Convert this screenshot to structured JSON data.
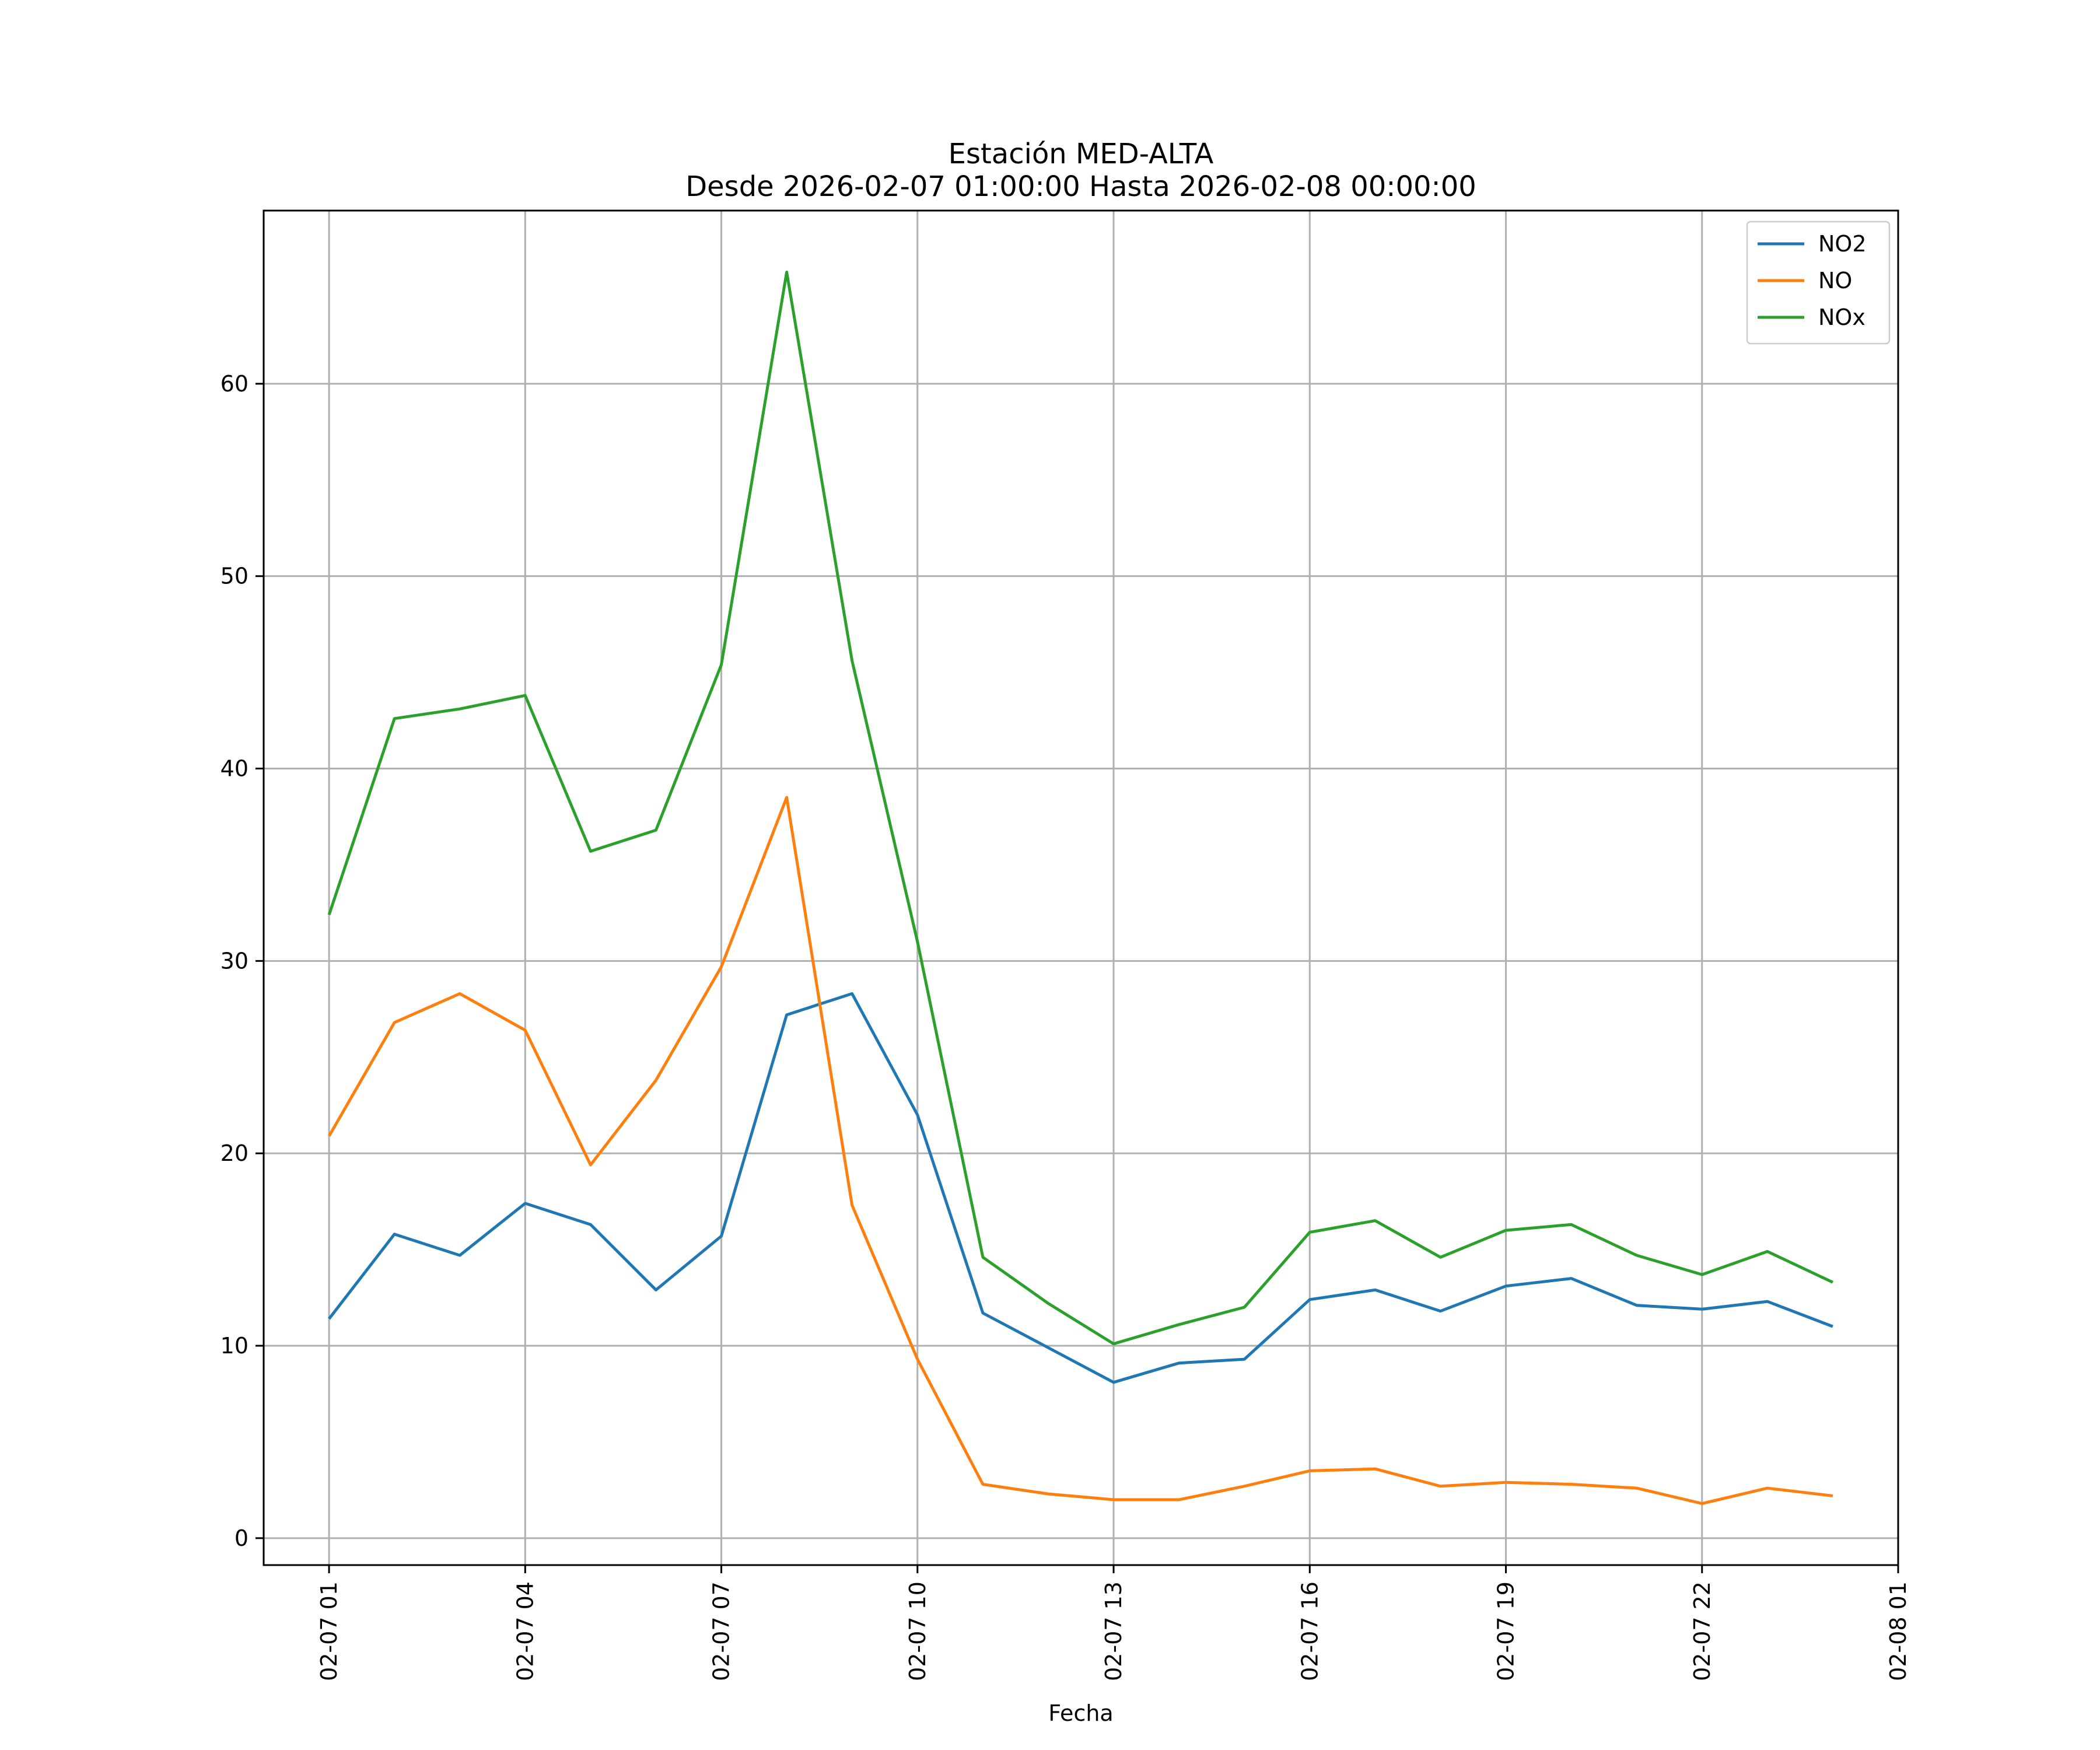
{
  "chart_data": {
    "type": "line",
    "title": [
      "Estación MED-ALTA",
      "Desde 2026-02-07 01:00:00 Hasta 2026-02-08 00:00:00"
    ],
    "xlabel": "Fecha",
    "ylabel": "",
    "x": [
      "02-07 01",
      "02-07 02",
      "02-07 03",
      "02-07 04",
      "02-07 05",
      "02-07 06",
      "02-07 07",
      "02-07 08",
      "02-07 09",
      "02-07 10",
      "02-07 11",
      "02-07 12",
      "02-07 13",
      "02-07 14",
      "02-07 15",
      "02-07 16",
      "02-07 17",
      "02-07 18",
      "02-07 19",
      "02-07 20",
      "02-07 21",
      "02-07 22",
      "02-07 23",
      "02-08 00"
    ],
    "x_ticks": [
      "02-07 01",
      "02-07 04",
      "02-07 07",
      "02-07 10",
      "02-07 13",
      "02-07 16",
      "02-07 19",
      "02-07 22",
      "02-08 01"
    ],
    "xlim": [
      "02-07 00:00",
      "02-08 01:00"
    ],
    "y_ticks": [
      0,
      10,
      20,
      30,
      40,
      50,
      60
    ],
    "ylim": [
      -1.4,
      69
    ],
    "grid": true,
    "legend_position": "top-right",
    "series": [
      {
        "name": "NO2",
        "color": "#1f77b4",
        "values": [
          11.4,
          15.8,
          14.7,
          17.4,
          16.3,
          12.9,
          15.7,
          27.2,
          28.3,
          22.0,
          11.7,
          9.9,
          8.1,
          9.1,
          9.3,
          12.4,
          12.9,
          11.8,
          13.1,
          13.5,
          12.1,
          11.9,
          12.3,
          11.0
        ]
      },
      {
        "name": "NO",
        "color": "#ff7f0e",
        "values": [
          20.9,
          26.8,
          28.3,
          26.4,
          19.4,
          23.8,
          29.7,
          38.5,
          17.3,
          9.3,
          2.8,
          2.3,
          2.0,
          2.0,
          2.7,
          3.5,
          3.6,
          2.7,
          2.9,
          2.8,
          2.6,
          1.8,
          2.6,
          2.2
        ]
      },
      {
        "name": "NOx",
        "color": "#2ca02c",
        "values": [
          32.4,
          42.6,
          43.1,
          43.8,
          35.7,
          36.8,
          45.4,
          65.8,
          45.6,
          31.0,
          14.6,
          12.2,
          10.1,
          11.1,
          12.0,
          15.9,
          16.5,
          14.6,
          16.0,
          16.3,
          14.7,
          13.7,
          14.9,
          13.3
        ]
      }
    ]
  }
}
